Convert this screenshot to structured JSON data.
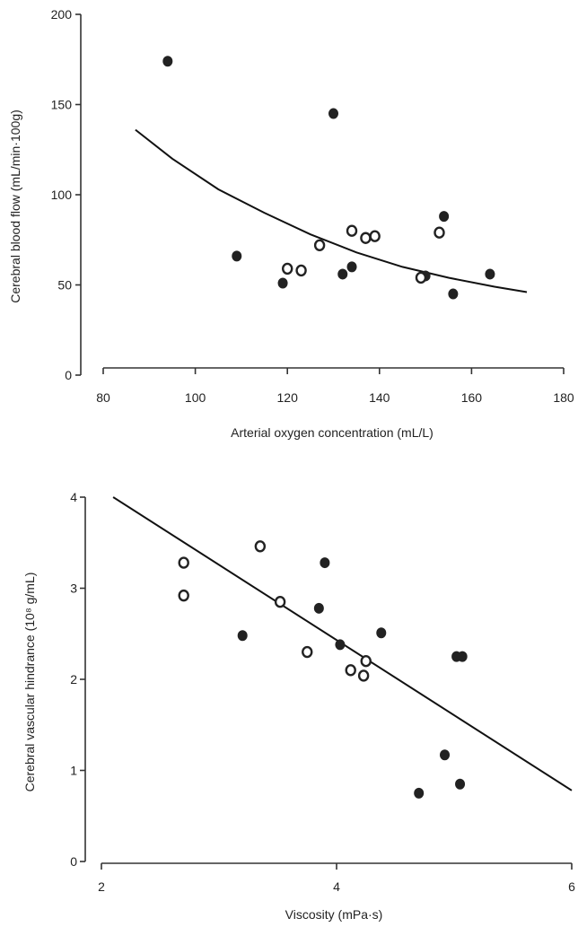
{
  "chart_data": [
    {
      "type": "scatter",
      "title": "",
      "xlabel": "Arterial oxygen concentration (mL/L)",
      "ylabel": "Cerebral blood flow (mL/min·100g)",
      "xlim": [
        80,
        180
      ],
      "ylim": [
        0,
        200
      ],
      "xticks": [
        80,
        100,
        120,
        140,
        160,
        180
      ],
      "yticks": [
        0,
        50,
        100,
        150,
        200
      ],
      "grid": false,
      "legend": "none",
      "series": [
        {
          "marker": "filled",
          "points": [
            {
              "x": 94,
              "y": 174
            },
            {
              "x": 130,
              "y": 145
            },
            {
              "x": 109,
              "y": 66
            },
            {
              "x": 119,
              "y": 51
            },
            {
              "x": 132,
              "y": 56
            },
            {
              "x": 134,
              "y": 60
            },
            {
              "x": 150,
              "y": 55
            },
            {
              "x": 154,
              "y": 88
            },
            {
              "x": 156,
              "y": 45
            },
            {
              "x": 164,
              "y": 56
            }
          ]
        },
        {
          "marker": "open",
          "points": [
            {
              "x": 120,
              "y": 59
            },
            {
              "x": 123,
              "y": 58
            },
            {
              "x": 127,
              "y": 72
            },
            {
              "x": 134,
              "y": 80
            },
            {
              "x": 137,
              "y": 76
            },
            {
              "x": 139,
              "y": 77
            },
            {
              "x": 149,
              "y": 54
            },
            {
              "x": 153,
              "y": 79
            }
          ]
        }
      ],
      "fit": {
        "type": "curve",
        "x": [
          87,
          95,
          105,
          115,
          125,
          135,
          145,
          155,
          165,
          172
        ],
        "y": [
          136,
          120,
          103,
          90,
          78,
          68,
          60,
          54,
          49,
          46
        ]
      }
    },
    {
      "type": "scatter",
      "title": "",
      "xlabel": "Viscosity (mPa·s)",
      "ylabel": "Cerebral vascular hindrance (10⁸ g/mL)",
      "xlim": [
        2,
        6
      ],
      "ylim": [
        0,
        4
      ],
      "xticks": [
        2,
        4,
        6
      ],
      "yticks": [
        0,
        1,
        2,
        3,
        4
      ],
      "grid": false,
      "legend": "none",
      "series": [
        {
          "marker": "filled",
          "points": [
            {
              "x": 3.2,
              "y": 2.48
            },
            {
              "x": 3.85,
              "y": 2.78
            },
            {
              "x": 3.9,
              "y": 3.28
            },
            {
              "x": 4.03,
              "y": 2.38
            },
            {
              "x": 4.38,
              "y": 2.51
            },
            {
              "x": 4.7,
              "y": 0.75
            },
            {
              "x": 4.92,
              "y": 1.17
            },
            {
              "x": 5.02,
              "y": 2.25
            },
            {
              "x": 5.07,
              "y": 2.25
            },
            {
              "x": 5.05,
              "y": 0.85
            }
          ]
        },
        {
          "marker": "open",
          "points": [
            {
              "x": 2.7,
              "y": 3.28
            },
            {
              "x": 2.7,
              "y": 2.92
            },
            {
              "x": 3.35,
              "y": 3.46
            },
            {
              "x": 3.52,
              "y": 2.85
            },
            {
              "x": 3.75,
              "y": 2.3
            },
            {
              "x": 4.12,
              "y": 2.1
            },
            {
              "x": 4.23,
              "y": 2.04
            },
            {
              "x": 4.25,
              "y": 2.2
            }
          ]
        }
      ],
      "fit": {
        "type": "line",
        "x": [
          2.1,
          6.0
        ],
        "y": [
          4.0,
          0.78
        ]
      }
    }
  ]
}
